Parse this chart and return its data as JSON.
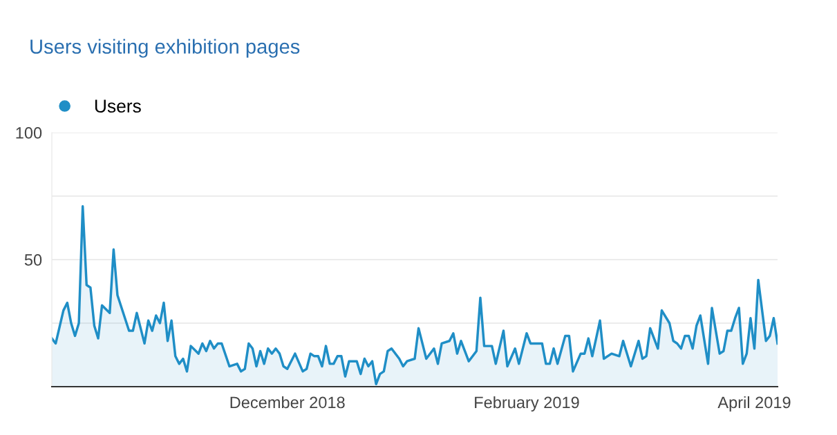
{
  "chart_data": {
    "type": "area",
    "title": "Users visiting exhibition pages",
    "x": [
      "2018-10-01",
      "2018-10-02",
      "2018-10-04",
      "2018-10-05",
      "2018-10-06",
      "2018-10-07",
      "2018-10-08",
      "2018-10-09",
      "2018-10-10",
      "2018-10-11",
      "2018-10-12",
      "2018-10-13",
      "2018-10-14",
      "2018-10-16",
      "2018-10-17",
      "2018-10-18",
      "2018-10-21",
      "2018-10-22",
      "2018-10-23",
      "2018-10-25",
      "2018-10-26",
      "2018-10-27",
      "2018-10-28",
      "2018-10-29",
      "2018-10-30",
      "2018-10-31",
      "2018-11-01",
      "2018-11-02",
      "2018-11-03",
      "2018-11-04",
      "2018-11-05",
      "2018-11-06",
      "2018-11-08",
      "2018-11-09",
      "2018-11-10",
      "2018-11-11",
      "2018-11-12",
      "2018-11-13",
      "2018-11-14",
      "2018-11-16",
      "2018-11-18",
      "2018-11-19",
      "2018-11-20",
      "2018-11-21",
      "2018-11-22",
      "2018-11-23",
      "2018-11-24",
      "2018-11-25",
      "2018-11-26",
      "2018-11-27",
      "2018-11-28",
      "2018-11-29",
      "2018-11-30",
      "2018-12-01",
      "2018-12-03",
      "2018-12-05",
      "2018-12-06",
      "2018-12-07",
      "2018-12-08",
      "2018-12-09",
      "2018-12-10",
      "2018-12-11",
      "2018-12-12",
      "2018-12-13",
      "2018-12-14",
      "2018-12-15",
      "2018-12-16",
      "2018-12-17",
      "2018-12-19",
      "2018-12-20",
      "2018-12-21",
      "2018-12-22",
      "2018-12-23",
      "2018-12-24",
      "2018-12-25",
      "2018-12-26",
      "2018-12-27",
      "2018-12-28",
      "2018-12-30",
      "2018-12-31",
      "2019-01-01",
      "2019-01-03",
      "2019-01-04",
      "2019-01-06",
      "2019-01-08",
      "2019-01-09",
      "2019-01-10",
      "2019-01-12",
      "2019-01-13",
      "2019-01-14",
      "2019-01-15",
      "2019-01-17",
      "2019-01-19",
      "2019-01-20",
      "2019-01-21",
      "2019-01-23",
      "2019-01-24",
      "2019-01-26",
      "2019-01-27",
      "2019-01-29",
      "2019-01-30",
      "2019-02-01",
      "2019-02-02",
      "2019-02-05",
      "2019-02-06",
      "2019-02-07",
      "2019-02-08",
      "2019-02-09",
      "2019-02-11",
      "2019-02-12",
      "2019-02-13",
      "2019-02-15",
      "2019-02-16",
      "2019-02-17",
      "2019-02-18",
      "2019-02-20",
      "2019-02-21",
      "2019-02-23",
      "2019-02-25",
      "2019-02-26",
      "2019-02-28",
      "2019-03-02",
      "2019-03-03",
      "2019-03-04",
      "2019-03-05",
      "2019-03-07",
      "2019-03-08",
      "2019-03-10",
      "2019-03-11",
      "2019-03-12",
      "2019-03-13",
      "2019-03-14",
      "2019-03-15",
      "2019-03-16",
      "2019-03-17",
      "2019-03-18",
      "2019-03-20",
      "2019-03-21",
      "2019-03-23",
      "2019-03-24",
      "2019-03-25",
      "2019-03-26",
      "2019-03-27",
      "2019-03-28",
      "2019-03-29",
      "2019-03-30",
      "2019-03-31",
      "2019-04-01",
      "2019-04-02",
      "2019-04-04",
      "2019-04-05",
      "2019-04-06",
      "2019-04-07"
    ],
    "series": [
      {
        "name": "Users",
        "color": "#1f8ec6",
        "values": [
          19,
          17,
          30,
          33,
          25,
          20,
          25,
          71,
          40,
          39,
          24,
          19,
          32,
          29,
          54,
          36,
          22,
          22,
          29,
          17,
          26,
          22,
          28,
          25,
          33,
          18,
          26,
          12,
          9,
          11,
          6,
          16,
          13,
          17,
          14,
          18,
          15,
          17,
          17,
          8,
          9,
          6,
          7,
          17,
          15,
          8,
          14,
          9,
          15,
          13,
          15,
          13,
          8,
          7,
          13,
          6,
          7,
          13,
          12,
          12,
          8,
          16,
          9,
          9,
          12,
          12,
          4,
          10,
          10,
          5,
          11,
          8,
          10,
          1,
          5,
          6,
          14,
          15,
          11,
          8,
          10,
          11,
          23,
          11,
          15,
          9,
          17,
          18,
          21,
          13,
          18,
          10,
          14,
          35,
          16,
          16,
          9,
          22,
          8,
          15,
          9,
          21,
          17,
          17,
          9,
          9,
          15,
          9,
          20,
          20,
          6,
          13,
          13,
          19,
          12,
          26,
          11,
          13,
          12,
          18,
          8,
          18,
          11,
          12,
          23,
          15,
          30,
          25,
          18,
          17,
          15,
          20,
          20,
          15,
          24,
          28,
          9,
          31,
          13,
          14,
          22,
          22,
          27,
          31,
          9,
          13,
          27,
          15,
          42,
          18,
          20,
          27,
          17
        ]
      }
    ],
    "xlim": [
      "2018-10-01",
      "2019-04-07"
    ],
    "xticks": [
      {
        "value": "2018-12-01",
        "label": "December 2018"
      },
      {
        "value": "2019-02-01",
        "label": "February 2019"
      },
      {
        "value": "2019-04-01",
        "label": "April 2019"
      }
    ],
    "ylim": [
      0,
      100
    ],
    "yticks": [
      {
        "value": 0,
        "label": null
      },
      {
        "value": 25,
        "label": null
      },
      50,
      {
        "value": 75,
        "label": null
      },
      100
    ],
    "grid": "y",
    "legend": "top left"
  }
}
